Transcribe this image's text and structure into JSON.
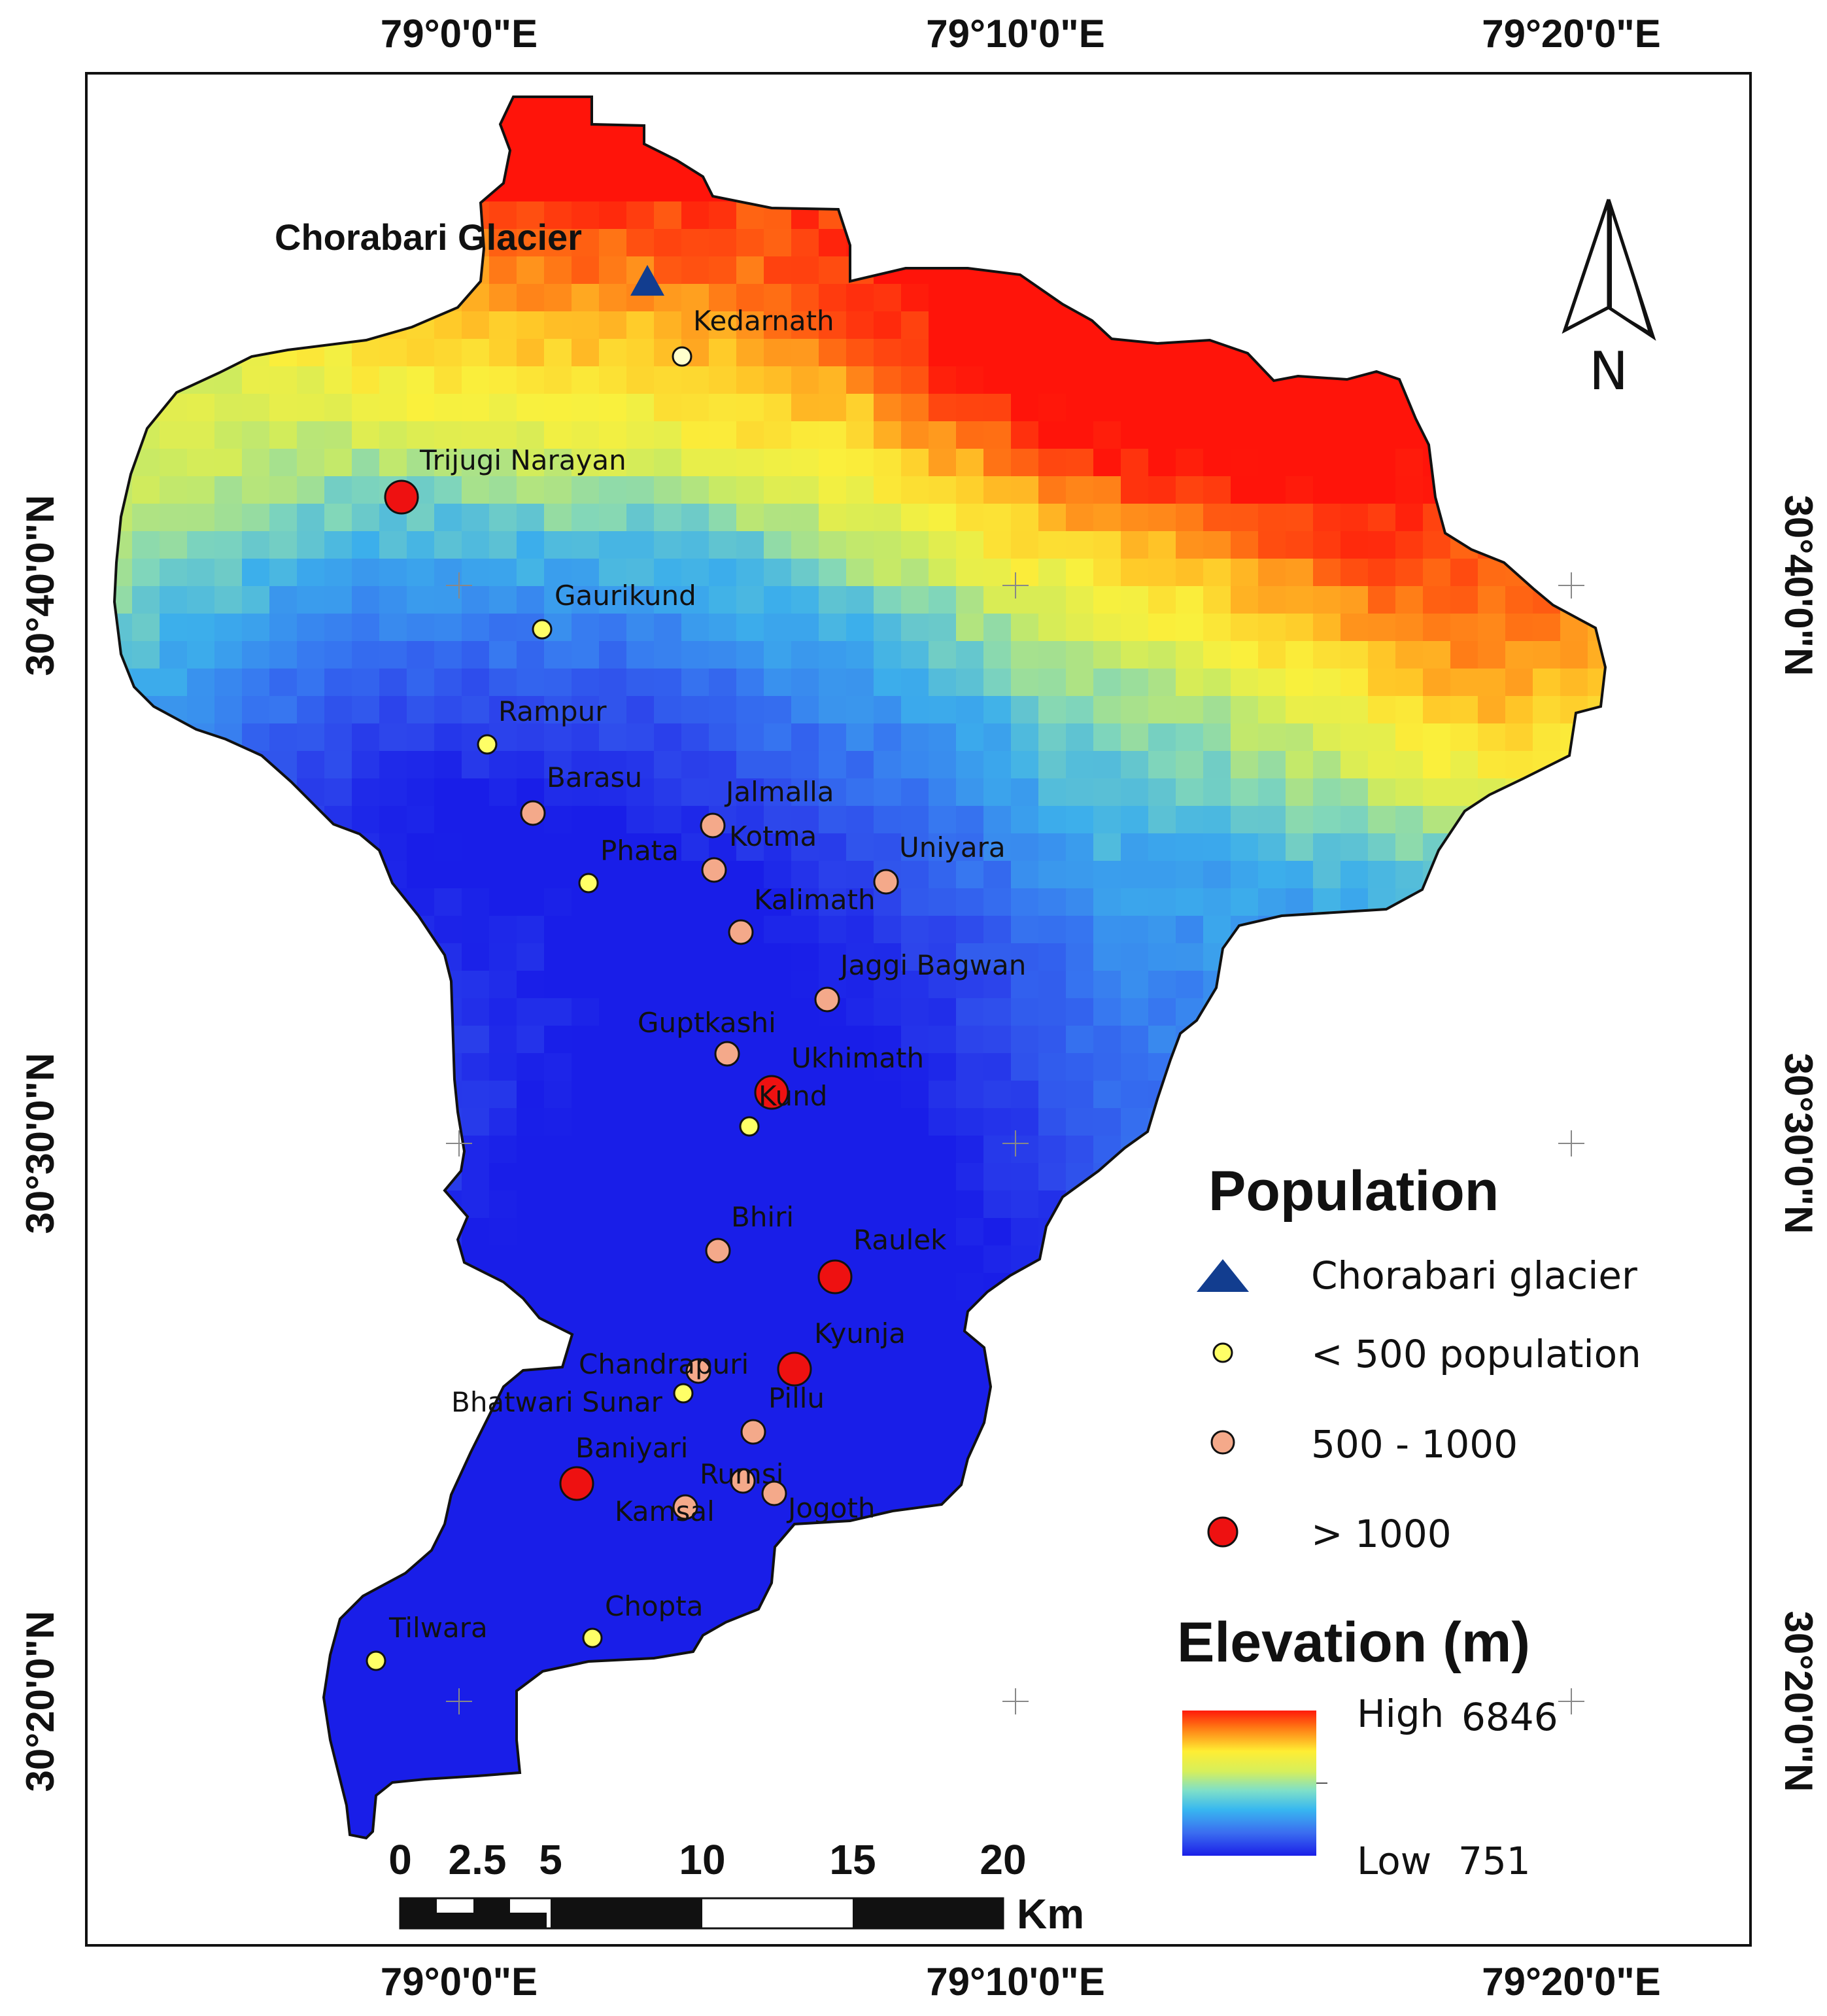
{
  "map": {
    "glacier": {
      "label": "Chorabari Glacier"
    },
    "coordinates": {
      "top": [
        "79°0'0\"E",
        "79°10'0\"E",
        "79°20'0\"E"
      ],
      "bottom": [
        "79°0'0\"E",
        "79°10'0\"E",
        "79°20'0\"E"
      ],
      "left": [
        "30°40'0\"N",
        "30°30'0\"N",
        "30°20'0\"N"
      ],
      "right": [
        "30°40'0\"N",
        "30°30'0\"N",
        "30°20'0\"N"
      ]
    },
    "settlements": [
      {
        "name": "Kedarnath",
        "class": "small"
      },
      {
        "name": "Trijugi Narayan",
        "class": "large"
      },
      {
        "name": "Gaurikund",
        "class": "small"
      },
      {
        "name": "Rampur",
        "class": "small"
      },
      {
        "name": "Barasu",
        "class": "medium"
      },
      {
        "name": "Jalmalla",
        "class": "medium"
      },
      {
        "name": "Kotma",
        "class": "medium"
      },
      {
        "name": "Phata",
        "class": "small"
      },
      {
        "name": "Uniyara",
        "class": "medium"
      },
      {
        "name": "Kalimath",
        "class": "medium"
      },
      {
        "name": "Jaggi Bagwan",
        "class": "medium"
      },
      {
        "name": "Guptkashi",
        "class": "medium"
      },
      {
        "name": "Ukhimath",
        "class": "large"
      },
      {
        "name": "Kund",
        "class": "small"
      },
      {
        "name": "Bhiri",
        "class": "medium"
      },
      {
        "name": "Raulek",
        "class": "large"
      },
      {
        "name": "Kyunja",
        "class": "large"
      },
      {
        "name": "Chandrapuri",
        "class": "medium"
      },
      {
        "name": "Bhatwari Sunar",
        "class": "small"
      },
      {
        "name": "Pillu",
        "class": "medium"
      },
      {
        "name": "Baniyari",
        "class": "large"
      },
      {
        "name": "Rumsi",
        "class": "medium"
      },
      {
        "name": "Jogoth",
        "class": "medium"
      },
      {
        "name": "Kamsal",
        "class": "medium"
      },
      {
        "name": "Chopta",
        "class": "small"
      },
      {
        "name": "Tilwara",
        "class": "small"
      }
    ],
    "legend": {
      "population_title": "Population",
      "items": [
        {
          "label": "Chorabari glacier",
          "color": "#123d8f"
        },
        {
          "label": "< 500 population",
          "color": "#ffff66"
        },
        {
          "label": "500 - 1000",
          "color": "#f4a98a"
        },
        {
          "label": "> 1000",
          "color": "#ee1111"
        }
      ],
      "elevation_title": "Elevation (m)",
      "high_label": "High",
      "high_value": "6846",
      "low_label": "Low",
      "low_value": "751"
    },
    "scale_bar": {
      "ticks": [
        "0",
        "2.5",
        "5",
        "10",
        "15",
        "20"
      ],
      "unit": "Km"
    },
    "north_label": "N",
    "colors": {
      "small": "#ffff66",
      "medium": "#f4a98a",
      "large": "#ee1111",
      "glacier": "#123d8f"
    }
  }
}
